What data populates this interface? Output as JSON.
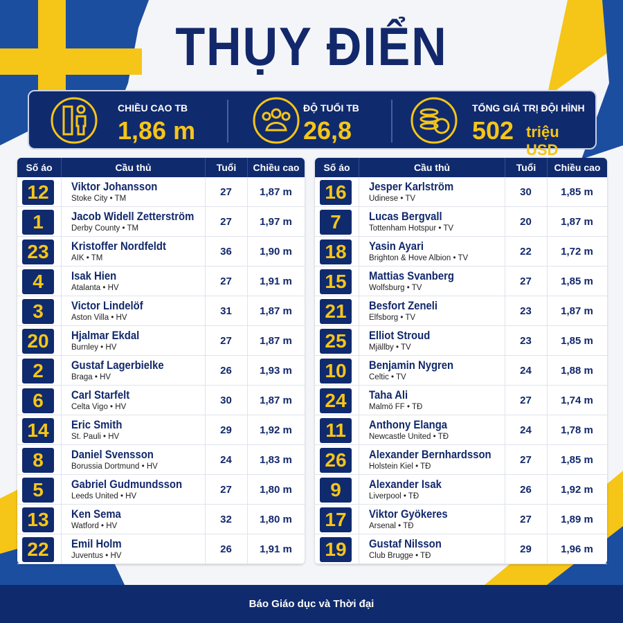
{
  "title": "THỤY ĐIỂN",
  "stats": [
    {
      "label": "CHIỀU CAO TB",
      "value": "1,86 m"
    },
    {
      "label": "ĐỘ TUỔI TB",
      "value": "26,8"
    },
    {
      "label": "TỔNG GIÁ TRỊ ĐỘI HÌNH",
      "value": "502",
      "unit": "triệu USD"
    }
  ],
  "tables": [
    {
      "columns": [
        "Số áo",
        "Cầu thủ",
        "Tuổi",
        "Chiều cao"
      ],
      "rows": [
        {
          "number": 12,
          "name": "Viktor Johansson",
          "club": "Stoke City • TM",
          "age": 27,
          "height": "1,87 m"
        },
        {
          "number": 1,
          "name": "Jacob Widell Zetterström",
          "club": "Derby County • TM",
          "age": 27,
          "height": "1,97 m"
        },
        {
          "number": 23,
          "name": "Kristoffer Nordfeldt",
          "club": "AIK • TM",
          "age": 36,
          "height": "1,90 m"
        },
        {
          "number": 4,
          "name": "Isak Hien",
          "club": "Atalanta • HV",
          "age": 27,
          "height": "1,91 m"
        },
        {
          "number": 3,
          "name": "Victor Lindelöf",
          "club": "Aston Villa • HV",
          "age": 31,
          "height": "1,87 m"
        },
        {
          "number": 20,
          "name": "Hjalmar Ekdal",
          "club": "Burnley • HV",
          "age": 27,
          "height": "1,87 m"
        },
        {
          "number": 2,
          "name": "Gustaf Lagerbielke",
          "club": "Braga • HV",
          "age": 26,
          "height": "1,93 m"
        },
        {
          "number": 6,
          "name": "Carl Starfelt",
          "club": "Celta Vigo • HV",
          "age": 30,
          "height": "1,87 m"
        },
        {
          "number": 14,
          "name": "Eric Smith",
          "club": "St. Pauli • HV",
          "age": 29,
          "height": "1,92 m"
        },
        {
          "number": 8,
          "name": "Daniel Svensson",
          "club": "Borussia Dortmund • HV",
          "age": 24,
          "height": "1,83 m"
        },
        {
          "number": 5,
          "name": "Gabriel Gudmundsson",
          "club": "Leeds United • HV",
          "age": 27,
          "height": "1,80 m"
        },
        {
          "number": 13,
          "name": "Ken Sema",
          "club": "Watford • HV",
          "age": 32,
          "height": "1,80 m"
        },
        {
          "number": 22,
          "name": "Emil Holm",
          "club": "Juventus • HV",
          "age": 26,
          "height": "1,91 m"
        }
      ]
    },
    {
      "columns": [
        "Số áo",
        "Cầu thủ",
        "Tuổi",
        "Chiều cao"
      ],
      "rows": [
        {
          "number": 16,
          "name": "Jesper Karlström",
          "club": "Udinese • TV",
          "age": 30,
          "height": "1,85 m"
        },
        {
          "number": 7,
          "name": "Lucas Bergvall",
          "club": "Tottenham Hotspur • TV",
          "age": 20,
          "height": "1,87 m"
        },
        {
          "number": 18,
          "name": "Yasin Ayari",
          "club": "Brighton & Hove Albion • TV",
          "age": 22,
          "height": "1,72 m"
        },
        {
          "number": 15,
          "name": "Mattias Svanberg",
          "club": "Wolfsburg • TV",
          "age": 27,
          "height": "1,85 m"
        },
        {
          "number": 21,
          "name": "Besfort Zeneli",
          "club": "Elfsborg • TV",
          "age": 23,
          "height": "1,87 m"
        },
        {
          "number": 25,
          "name": "Elliot Stroud",
          "club": "Mjällby • TV",
          "age": 23,
          "height": "1,85 m"
        },
        {
          "number": 10,
          "name": "Benjamin Nygren",
          "club": "Celtic • TV",
          "age": 24,
          "height": "1,88 m"
        },
        {
          "number": 24,
          "name": "Taha Ali",
          "club": "Malmö FF • TĐ",
          "age": 27,
          "height": "1,74 m"
        },
        {
          "number": 11,
          "name": "Anthony Elanga",
          "club": "Newcastle United • TĐ",
          "age": 24,
          "height": "1,78 m"
        },
        {
          "number": 26,
          "name": "Alexander Bernhardsson",
          "club": "Holstein Kiel • TĐ",
          "age": 27,
          "height": "1,85 m"
        },
        {
          "number": 9,
          "name": "Alexander Isak",
          "club": "Liverpool • TĐ",
          "age": 26,
          "height": "1,92 m"
        },
        {
          "number": 17,
          "name": "Viktor Gyökeres",
          "club": "Arsenal • TĐ",
          "age": 27,
          "height": "1,89 m"
        },
        {
          "number": 19,
          "name": "Gustaf Nilsson",
          "club": "Club Brugge • TĐ",
          "age": 29,
          "height": "1,96 m"
        }
      ]
    }
  ],
  "footer": "Báo Giáo dục và Thời đại"
}
